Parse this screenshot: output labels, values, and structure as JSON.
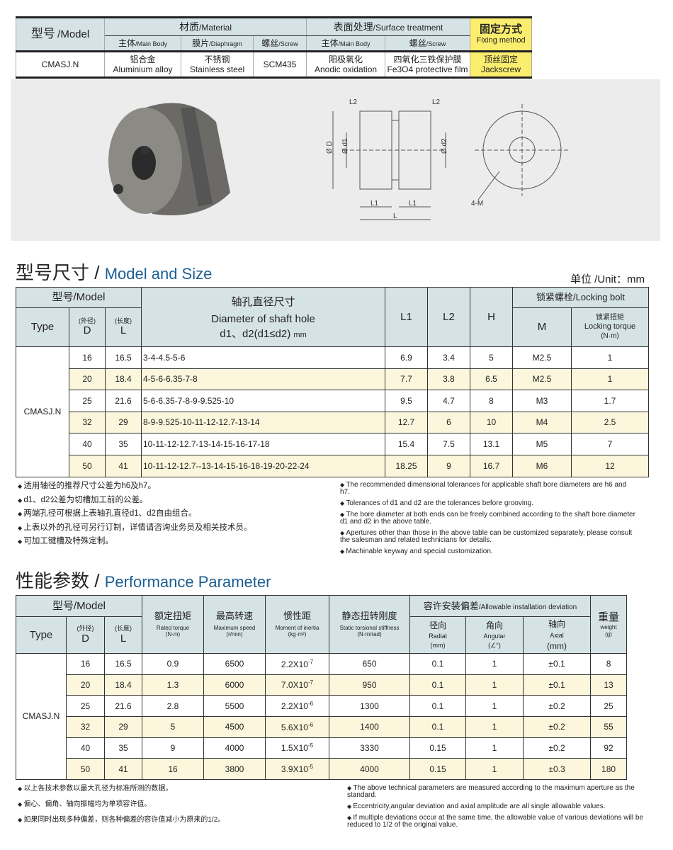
{
  "top_table": {
    "model_cn": "型号",
    "model_en": "/Model",
    "material_cn": "材质",
    "material_en": "/Material",
    "surface_cn": "表面处理",
    "surface_en": "/Surface treatment",
    "fixing_cn": "固定方式",
    "fixing_en": "Fixing method",
    "subheads": [
      {
        "cn": "主体",
        "en": "/Main Body"
      },
      {
        "cn": "膜片",
        "en": "/Diaphragm"
      },
      {
        "cn": "螺丝",
        "en": "/Screw"
      },
      {
        "cn": "主体",
        "en": "/Main Body"
      },
      {
        "cn": "螺丝",
        "en": "/Screw"
      }
    ],
    "row": {
      "model": "CMASJ.N",
      "body_cn": "铝合金",
      "body_en": "Aluminium alloy",
      "diaphragm_cn": "不锈钢",
      "diaphragm_en": "Stainless steel",
      "screw": "SCM435",
      "surface_body_cn": "阳极氧化",
      "surface_body_en": "Anodic oxidation",
      "surface_screw_cn": "四氧化三铁保护膜",
      "surface_screw_en": "Fe3O4 protective film",
      "fixing_cn": "顶丝固定",
      "fixing_en": "Jackscrew"
    }
  },
  "drawing": {
    "labels": [
      "L2",
      "L2",
      "Ø D",
      "Ø d1",
      "Ø d2",
      "L1",
      "L1",
      "L",
      "4-M"
    ]
  },
  "size": {
    "title_cn": "型号尺寸 /",
    "title_en": "Model and Size",
    "unit": "单位 /Unit：mm",
    "h_model": "型号/Model",
    "h_type": "Type",
    "h_d_cn": "(外径)",
    "h_d": "D",
    "h_l_cn": "(长度)",
    "h_l": "L",
    "h_dia_cn": "轴孔直径尺寸",
    "h_dia_en": "Diameter of shaft hole",
    "h_dia_sub": "d1、d2(d1≤d2)",
    "h_dia_unit": "mm",
    "h_l1": "L1",
    "h_l2": "L2",
    "h_h": "H",
    "h_bolt": "锁紧螺栓/Locking bolt",
    "h_m": "M",
    "h_tq_cn": "锁紧扭矩",
    "h_tq_en": "Locking torque",
    "h_tq_unit": "(N·m)",
    "type": "CMASJ.N",
    "rows": [
      [
        "16",
        "16.5",
        "3-4-4.5-5-6",
        "6.9",
        "3.4",
        "5",
        "M2.5",
        "1"
      ],
      [
        "20",
        "18.4",
        "4-5-6-6.35-7-8",
        "7.7",
        "3.8",
        "6.5",
        "M2.5",
        "1"
      ],
      [
        "25",
        "21.6",
        "5-6-6.35-7-8-9-9.525-10",
        "9.5",
        "4.7",
        "8",
        "M3",
        "1.7"
      ],
      [
        "32",
        "29",
        "8-9-9.525-10-11-12-12.7-13-14",
        "12.7",
        "6",
        "10",
        "M4",
        "2.5"
      ],
      [
        "40",
        "35",
        "10-11-12-12.7-13-14-15-16-17-18",
        "15.4",
        "7.5",
        "13.1",
        "M5",
        "7"
      ],
      [
        "50",
        "41",
        "10-11-12-12.7--13-14-15-16-18-19-20-22-24",
        "18.25",
        "9",
        "16.7",
        "M6",
        "12"
      ]
    ],
    "notes_cn": [
      "适用轴径的推荐尺寸公差为h6及h7。",
      "d1、d2公差为切槽加工前的公差。",
      "两端孔径可根据上表轴孔直径d1、d2自由组合。",
      "上表以外的孔径可另行订制，详情请咨询业务员及相关技术员。",
      "可加工键槽及特殊定制。"
    ],
    "notes_en": [
      "The recommended dimensional tolerances for applicable shaft bore diameters are h6 and h7.",
      "Tolerances of d1 and d2 are the tolerances before grooving.",
      "The bore diameter at both ends can be freely combined according to the shaft bore diameter d1 and d2 in the above table.",
      "Apertures other than those in the above table can be customized separately, please consult the salesman and related technicians for details.",
      "Machinable keyway and special customization."
    ]
  },
  "perf": {
    "title_cn": "性能参数 /",
    "title_en": "Performance Parameter",
    "h_model": "型号/Model",
    "h_type": "Type",
    "h_d_cn": "(外径)",
    "h_d": "D",
    "h_l_cn": "(长度)",
    "h_l": "L",
    "cols": [
      {
        "cn": "额定扭矩",
        "en": "Rated torque",
        "u": "(N·m)"
      },
      {
        "cn": "最高转速",
        "en": "Maximum speed",
        "u": "(r/min)"
      },
      {
        "cn": "惯性距",
        "en": "Moment of inertia",
        "u": "(kg·m²)"
      },
      {
        "cn": "静态扭转刚度",
        "en": "Static torsional stiffness",
        "u": "(N·m/rad)"
      }
    ],
    "h_dev": "容许安装偏差",
    "h_dev_en": "/Allowable installation deviation",
    "dev": [
      {
        "cn": "径向",
        "en": "Radial",
        "u": "(mm)"
      },
      {
        "cn": "角向",
        "en": "Angular",
        "u": "(∠°)"
      },
      {
        "cn": "轴向",
        "en": "Axial",
        "u": "(mm)"
      }
    ],
    "h_w_cn": "重量",
    "h_w_en": "weight",
    "h_w_u": "(g)",
    "type": "CMASJ.N",
    "rows": [
      [
        "16",
        "16.5",
        "0.9",
        "6500",
        "2.2X10",
        "-7",
        "650",
        "0.1",
        "1",
        "±0.1",
        "8"
      ],
      [
        "20",
        "18.4",
        "1.3",
        "6000",
        "7.0X10",
        "-7",
        "950",
        "0.1",
        "1",
        "±0.1",
        "13"
      ],
      [
        "25",
        "21.6",
        "2.8",
        "5500",
        "2.2X10",
        "-6",
        "1300",
        "0.1",
        "1",
        "±0.2",
        "25"
      ],
      [
        "32",
        "29",
        "5",
        "4500",
        "5.6X10",
        "-6",
        "1400",
        "0.1",
        "1",
        "±0.2",
        "55"
      ],
      [
        "40",
        "35",
        "9",
        "4000",
        "1.5X10",
        "-5",
        "3330",
        "0.15",
        "1",
        "±0.2",
        "92"
      ],
      [
        "50",
        "41",
        "16",
        "3800",
        "3.9X10",
        "-5",
        "4000",
        "0.15",
        "1",
        "±0.3",
        "180"
      ]
    ],
    "notes_cn": [
      "以上各技术参数以最大孔径为标准所测的数据。",
      "偏心、偏角、轴向振幅均为单项容许值。",
      "如果同时出现多种偏差，则各种偏差的容许值减小为原来的1/2。"
    ],
    "notes_en": [
      "The above technical parameters are measured according to the maximum aperture as the standard.",
      "Eccentricity,angular deviation and axial amplitude are all single allowable values.",
      "If multiple deviations occur at the same time, the allowable value of various deviations will be reduced to 1/2 of the original value."
    ]
  }
}
